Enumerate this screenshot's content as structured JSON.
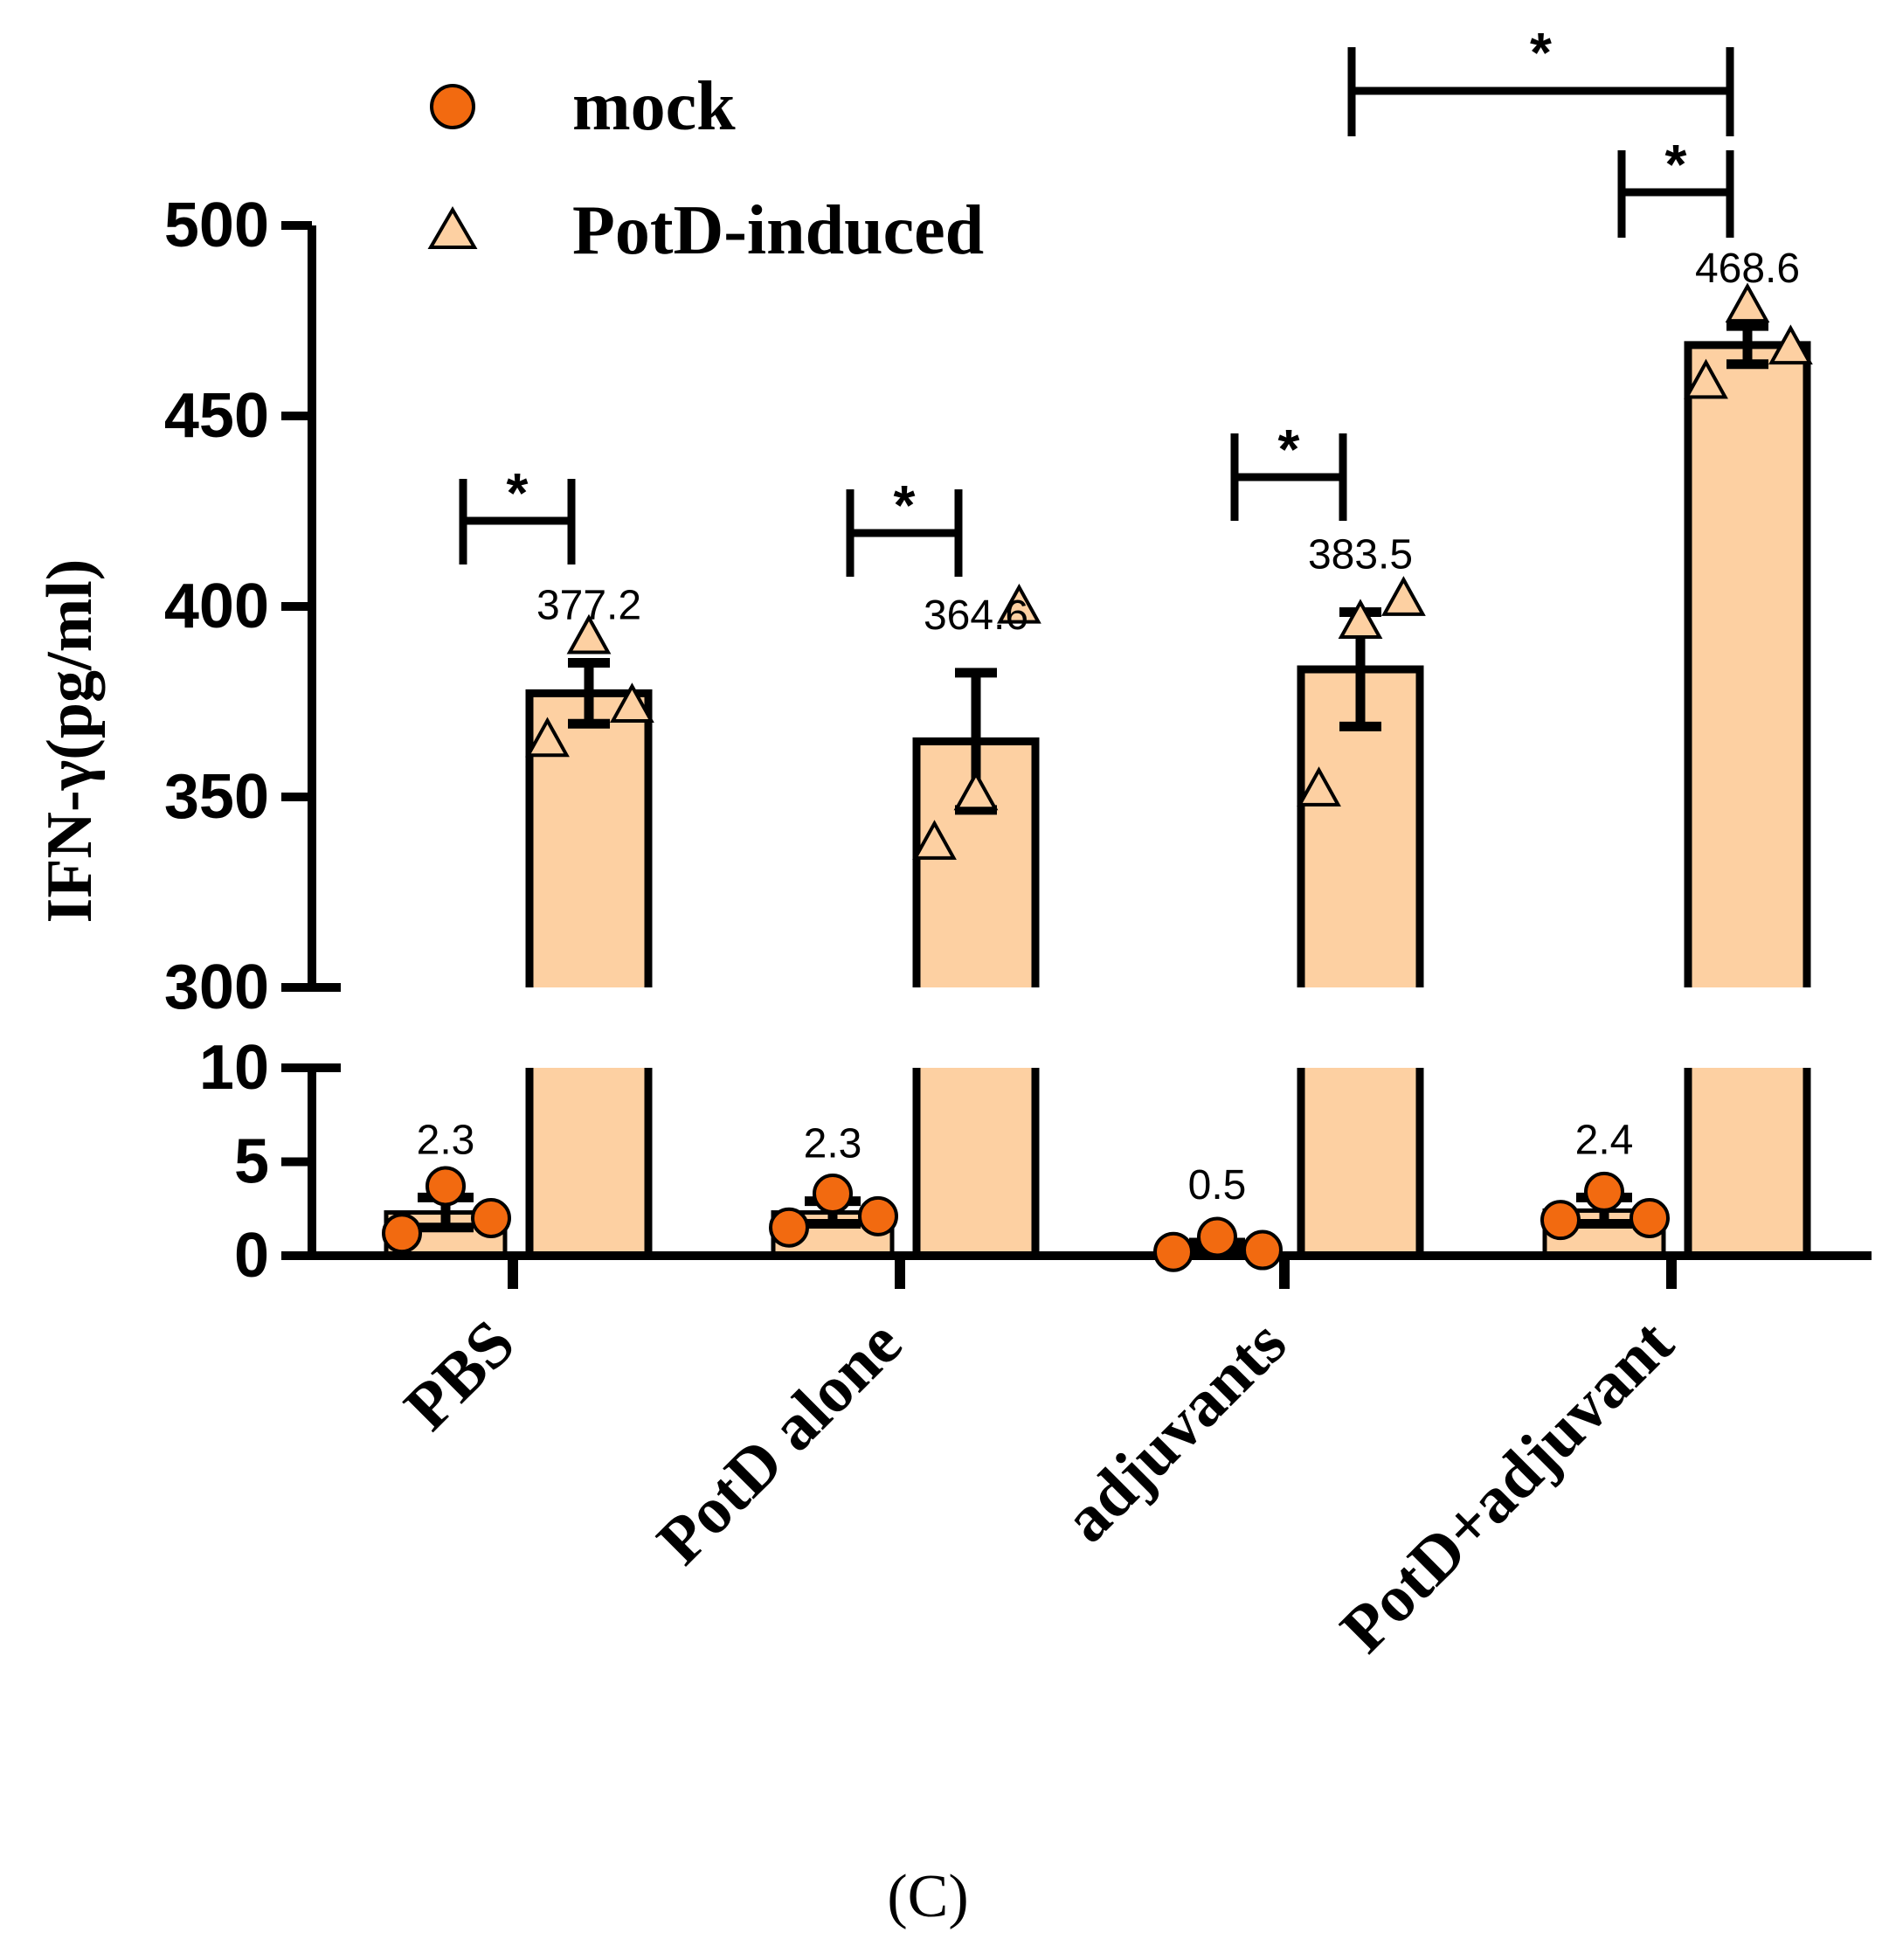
{
  "chart_data": {
    "type": "bar",
    "panel_label": "(C)",
    "ylabel": "IFN-γ(pg/ml)",
    "xlabel": "",
    "categories": [
      "PBS",
      "PotD alone",
      "adjuvants",
      "PotD+adjuvant"
    ],
    "y_axis_broken": true,
    "lower_segment": {
      "ylim": [
        0,
        10
      ],
      "ticks": [
        "0",
        "5",
        "10"
      ]
    },
    "upper_segment": {
      "ylim": [
        300,
        500
      ],
      "ticks": [
        "300",
        "350",
        "400",
        "450",
        "500"
      ]
    },
    "legend": {
      "position": "top-left",
      "entries": [
        "mock",
        "PotD-induced"
      ]
    },
    "colors": {
      "mock": "#f26a10",
      "induced": "#fdd0a2",
      "stroke": "#000000"
    },
    "series": [
      {
        "name": "mock",
        "values": [
          2.3,
          2.3,
          0.5,
          2.4
        ],
        "value_labels": [
          "2.3",
          "2.3",
          "0.5",
          "2.4"
        ],
        "errors": [
          0.8,
          0.6,
          0.2,
          0.7
        ],
        "points": [
          [
            1.2,
            3.7,
            2.0
          ],
          [
            1.5,
            3.3,
            2.1
          ],
          [
            0.2,
            1.0,
            0.3
          ],
          [
            1.9,
            3.4,
            2.0
          ]
        ]
      },
      {
        "name": "PotD-induced",
        "values": [
          377.2,
          364.6,
          383.5,
          468.6
        ],
        "value_labels": [
          "377.2",
          "364.6",
          "383.5",
          "468.6"
        ],
        "errors": [
          8,
          18,
          15,
          5
        ],
        "points": [
          [
            365,
            392,
            374
          ],
          [
            338,
            351,
            400
          ],
          [
            352,
            396,
            402
          ],
          [
            459,
            479,
            468
          ]
        ]
      }
    ],
    "significance": [
      {
        "label": "*",
        "from": "PBS mock",
        "to": "PBS PotD-induced"
      },
      {
        "label": "*",
        "from": "PotD alone mock",
        "to": "PotD alone PotD-induced"
      },
      {
        "label": "*",
        "from": "adjuvants mock",
        "to": "adjuvants PotD-induced"
      },
      {
        "label": "*",
        "from": "PotD+adjuvant mock",
        "to": "PotD+adjuvant PotD-induced"
      },
      {
        "label": "*",
        "from": "adjuvants PotD-induced",
        "to": "PotD+adjuvant PotD-induced"
      }
    ]
  }
}
